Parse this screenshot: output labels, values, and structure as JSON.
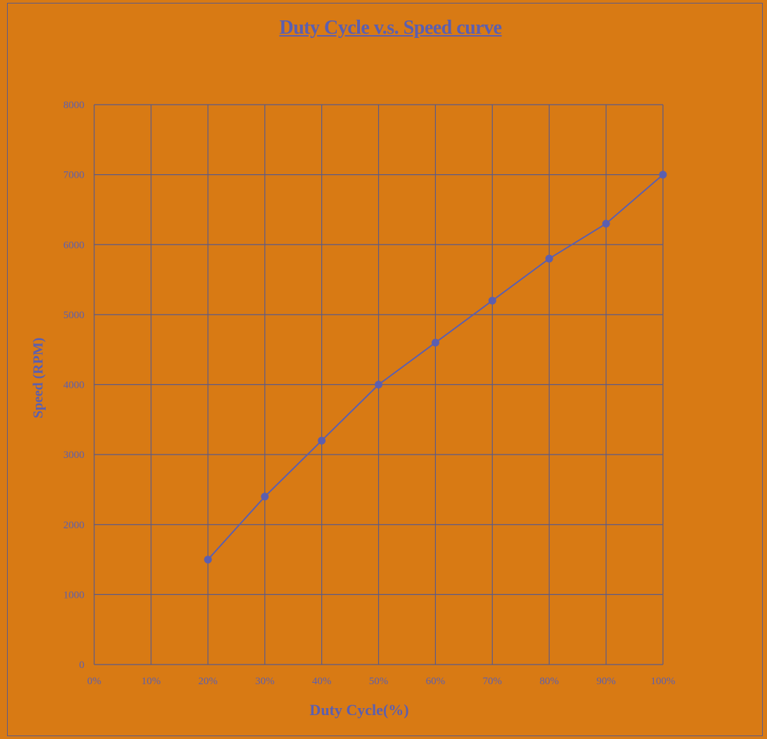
{
  "chart_data": {
    "type": "line",
    "title": "Duty  Cycle v.s. Speed curve",
    "xlabel": "Duty Cycle(%)",
    "ylabel": "Speed (RPM)",
    "x": [
      20,
      30,
      40,
      50,
      60,
      70,
      80,
      90,
      100
    ],
    "series": [
      {
        "values": [
          1500,
          2400,
          3200,
          4000,
          4600,
          5200,
          5800,
          6300,
          7000
        ]
      }
    ],
    "xlim": [
      0,
      100
    ],
    "ylim": [
      0,
      8000
    ],
    "x_ticks": [
      "0%",
      "10%",
      "20%",
      "30%",
      "40%",
      "50%",
      "60%",
      "70%",
      "80%",
      "90%",
      "100%"
    ],
    "y_ticks": [
      "0",
      "1000",
      "2000",
      "3000",
      "4000",
      "5000",
      "6000",
      "7000",
      "8000"
    ],
    "grid": true,
    "legend": "none",
    "colors": {
      "background": "#d87a14",
      "line": "#5b5fb0",
      "grid": "#5a5a8a",
      "text": "#5b5fb0"
    }
  }
}
